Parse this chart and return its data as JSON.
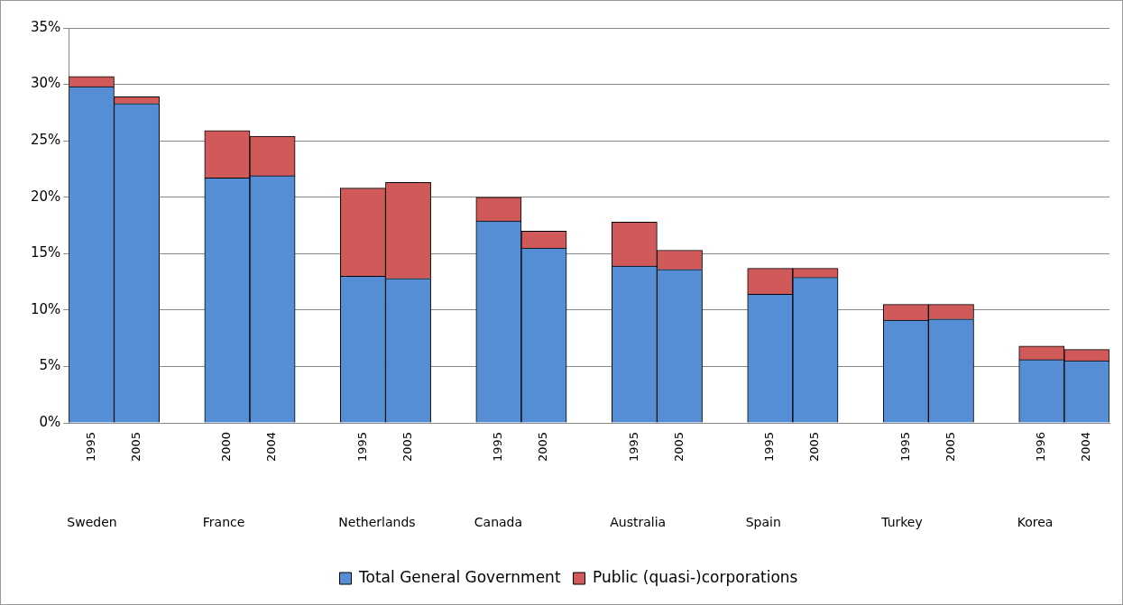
{
  "chart_data": {
    "type": "bar",
    "stacked": true,
    "categories": [
      "1995",
      "2005",
      null,
      "2000",
      "2004",
      null,
      "1995",
      "2005",
      null,
      "1995",
      "2005",
      null,
      "1995",
      "2005",
      null,
      "1995",
      "2005",
      null,
      "1995",
      "2005",
      null,
      "1996",
      "2004"
    ],
    "series": [
      {
        "name": "Total General Government",
        "color": "#558ed5",
        "values": [
          29.8,
          28.3,
          null,
          21.7,
          21.9,
          null,
          13.0,
          12.8,
          null,
          17.9,
          15.5,
          null,
          13.9,
          13.6,
          null,
          11.4,
          12.9,
          null,
          9.1,
          9.2,
          null,
          5.6,
          5.5
        ]
      },
      {
        "name": "Public (quasi-)corporations",
        "color": "#d05a5a",
        "values": [
          0.9,
          0.6,
          null,
          4.2,
          3.5,
          null,
          7.8,
          8.5,
          null,
          2.1,
          1.5,
          null,
          3.9,
          1.7,
          null,
          2.3,
          0.8,
          null,
          1.4,
          1.3,
          null,
          1.2,
          1.0
        ]
      }
    ],
    "annotations": [
      "Sweden",
      "France",
      "Netherlands",
      "Canada",
      "Australia",
      "Spain",
      "Turkey",
      "Korea"
    ],
    "ylim": [
      0,
      35
    ],
    "yticks": [
      {
        "value": 0,
        "label": "0%"
      },
      {
        "value": 5,
        "label": "5%"
      },
      {
        "value": 10,
        "label": "10%"
      },
      {
        "value": 15,
        "label": "15%"
      },
      {
        "value": 20,
        "label": "20%"
      },
      {
        "value": 25,
        "label": "25%"
      },
      {
        "value": 30,
        "label": "30%"
      },
      {
        "value": 35,
        "label": "35%"
      }
    ],
    "grid": "y",
    "legend": "bottom"
  }
}
